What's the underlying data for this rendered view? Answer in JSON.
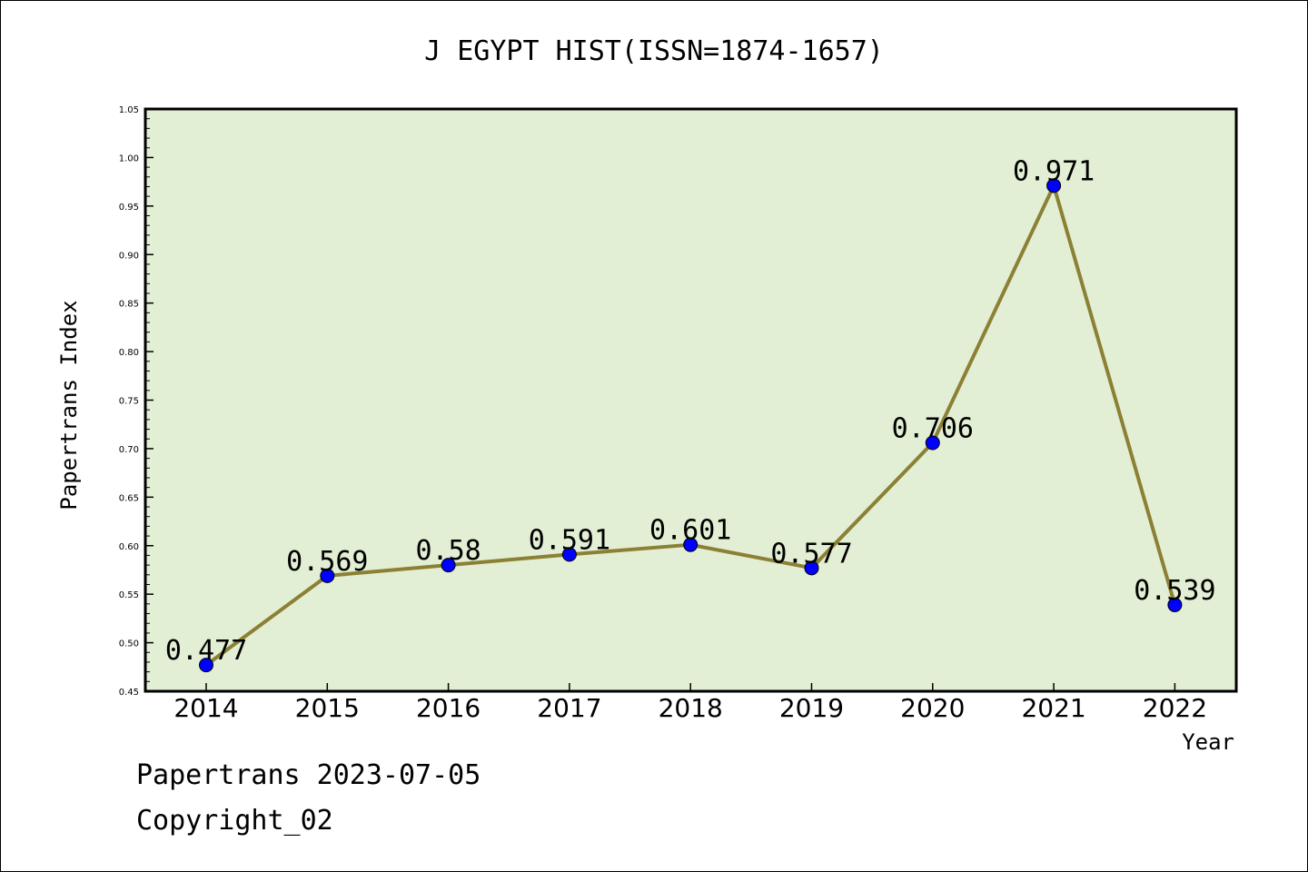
{
  "chart_data": {
    "type": "line",
    "title": "J EGYPT HIST(ISSN=1874-1657)",
    "xlabel": "Year",
    "ylabel": "Papertrans Index",
    "categories": [
      "2014",
      "2015",
      "2016",
      "2017",
      "2018",
      "2019",
      "2020",
      "2021",
      "2022"
    ],
    "values": [
      0.477,
      0.569,
      0.58,
      0.591,
      0.601,
      0.577,
      0.706,
      0.971,
      0.539
    ],
    "data_labels": [
      "0.477",
      "0.569",
      "0.58",
      "0.591",
      "0.601",
      "0.577",
      "0.706",
      "0.971",
      "0.539"
    ],
    "ylim": [
      0.45,
      1.05
    ],
    "yticks": [
      "0.45",
      "0.50",
      "0.55",
      "0.60",
      "0.65",
      "0.70",
      "0.75",
      "0.80",
      "0.85",
      "0.90",
      "0.95",
      "1.00",
      "1.05"
    ],
    "grid": false,
    "colors": {
      "plot_background": "#e2efd4",
      "line": "#8b8034",
      "marker": "#0000ff"
    }
  },
  "footer": {
    "date_line": "Papertrans 2023-07-05",
    "copyright": "Copyright_02"
  }
}
